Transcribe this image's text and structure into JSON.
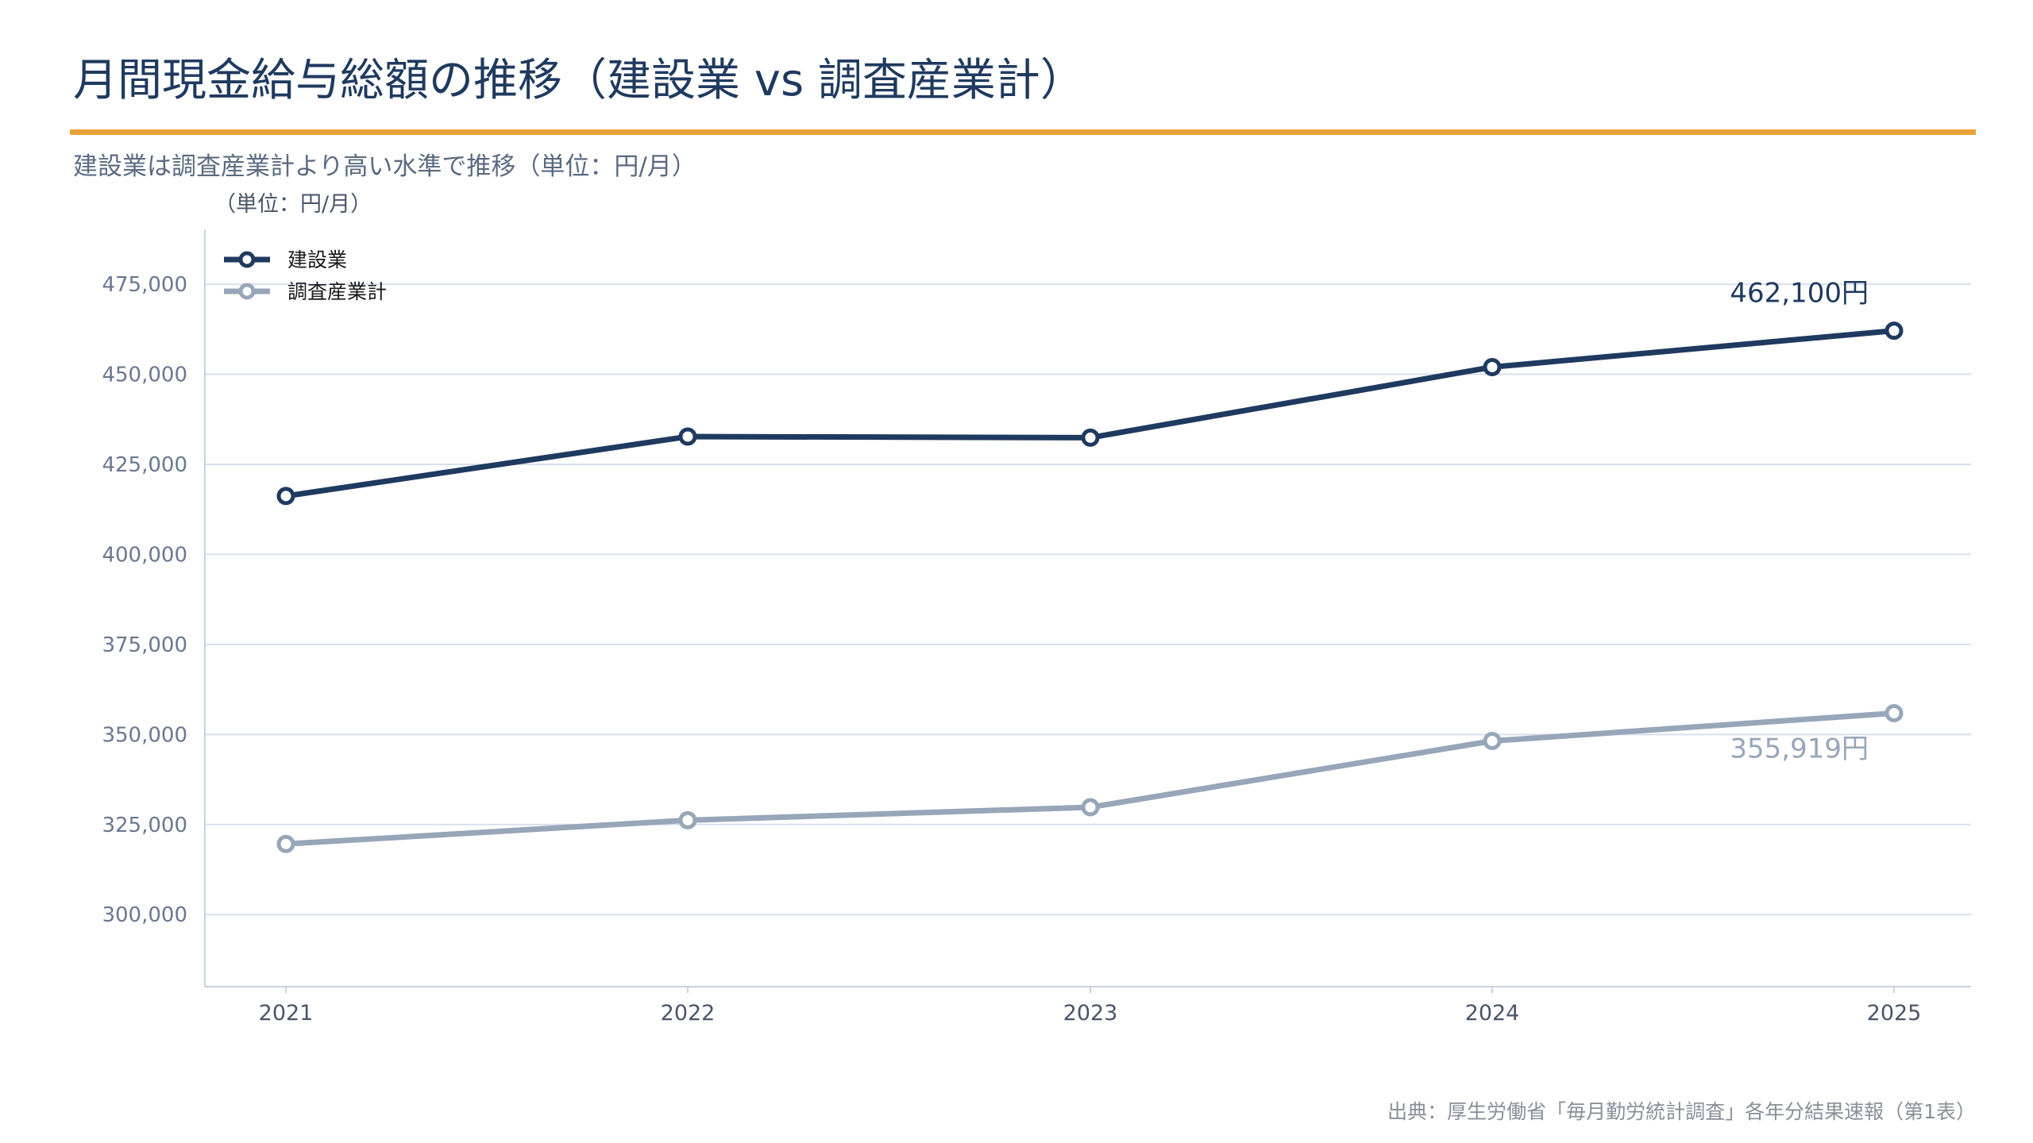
{
  "title": "月間現金給与総額の推移（建設業 vs 調査産業計）",
  "subtitle": "建設業は調査産業計より高い水準で推移（単位：円/月）",
  "source": "出典：厚生労働省「毎月勤労統計調査」各年分結果速報（第1表）",
  "colors": {
    "accent_rule": "#e8a33b",
    "construction": "#1f3a5f",
    "all_industries": "#97a6b8",
    "grid": "#d8e0ec",
    "axis": "#c8d2e0"
  },
  "chart_data": {
    "type": "line",
    "ylabel": "（単位：円/月）",
    "x": [
      "2021",
      "2022",
      "2023",
      "2024",
      "2025"
    ],
    "ylim": [
      280000,
      490000
    ],
    "yticks": [
      300000,
      325000,
      350000,
      375000,
      400000,
      425000,
      450000,
      475000
    ],
    "ytick_labels": [
      "300,000",
      "325,000",
      "350,000",
      "375,000",
      "400,000",
      "425,000",
      "450,000",
      "475,000"
    ],
    "grid": true,
    "legend_position": "top-left",
    "series": [
      {
        "name": "建設業",
        "values": [
          416200,
          432700,
          432400,
          452000,
          462100
        ],
        "end_label": "462,100円"
      },
      {
        "name": "調査産業計",
        "values": [
          319600,
          326200,
          329800,
          348200,
          355919
        ],
        "end_label": "355,919円"
      }
    ]
  }
}
